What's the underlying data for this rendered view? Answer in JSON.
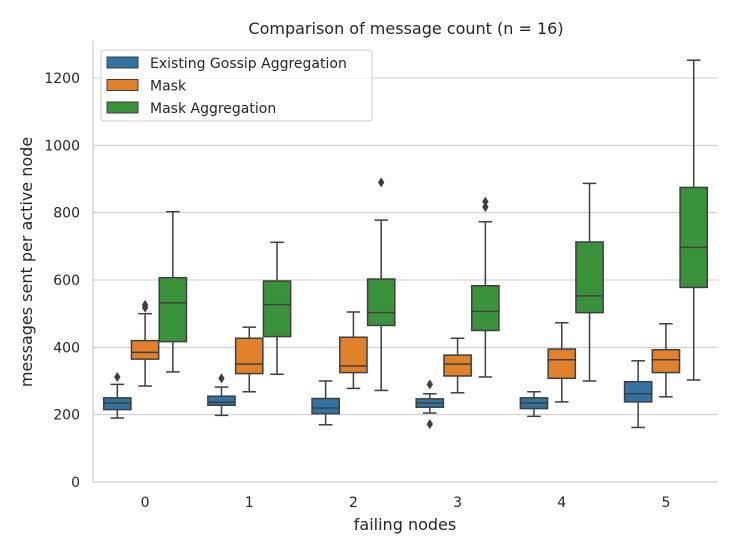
{
  "chart_data": {
    "type": "box",
    "title": "Comparison of message count (n = 16)",
    "xlabel": "failing nodes",
    "ylabel": "messages sent per active node",
    "categories": [
      "0",
      "1",
      "2",
      "3",
      "4",
      "5"
    ],
    "ylim": [
      0,
      1310
    ],
    "yticks": [
      0,
      200,
      400,
      600,
      800,
      1000,
      1200
    ],
    "grid": "horizontal",
    "legend_position": "top-left",
    "series": [
      {
        "name": "Existing Gossip Aggregation",
        "color": "#3274a1",
        "boxes": [
          {
            "whisker_low": 190,
            "q1": 215,
            "median": 235,
            "q3": 250,
            "whisker_high": 290,
            "outliers": [
              312
            ]
          },
          {
            "whisker_low": 198,
            "q1": 228,
            "median": 237,
            "q3": 255,
            "whisker_high": 282,
            "outliers": [
              308
            ]
          },
          {
            "whisker_low": 170,
            "q1": 203,
            "median": 220,
            "q3": 248,
            "whisker_high": 300,
            "outliers": []
          },
          {
            "whisker_low": 205,
            "q1": 222,
            "median": 235,
            "q3": 247,
            "whisker_high": 262,
            "outliers": [
              172,
              290
            ]
          },
          {
            "whisker_low": 195,
            "q1": 218,
            "median": 235,
            "q3": 250,
            "whisker_high": 268,
            "outliers": []
          },
          {
            "whisker_low": 162,
            "q1": 238,
            "median": 262,
            "q3": 298,
            "whisker_high": 360,
            "outliers": []
          }
        ]
      },
      {
        "name": "Mask",
        "color": "#e1812c",
        "boxes": [
          {
            "whisker_low": 285,
            "q1": 365,
            "median": 385,
            "q3": 420,
            "whisker_high": 500,
            "outliers": [
              518,
              526
            ]
          },
          {
            "whisker_low": 268,
            "q1": 322,
            "median": 350,
            "q3": 427,
            "whisker_high": 460,
            "outliers": []
          },
          {
            "whisker_low": 278,
            "q1": 325,
            "median": 345,
            "q3": 430,
            "whisker_high": 505,
            "outliers": []
          },
          {
            "whisker_low": 265,
            "q1": 315,
            "median": 350,
            "q3": 377,
            "whisker_high": 427,
            "outliers": []
          },
          {
            "whisker_low": 238,
            "q1": 308,
            "median": 363,
            "q3": 395,
            "whisker_high": 473,
            "outliers": []
          },
          {
            "whisker_low": 253,
            "q1": 325,
            "median": 363,
            "q3": 393,
            "whisker_high": 470,
            "outliers": []
          }
        ]
      },
      {
        "name": "Mask Aggregation",
        "color": "#3a923a",
        "boxes": [
          {
            "whisker_low": 327,
            "q1": 417,
            "median": 532,
            "q3": 607,
            "whisker_high": 803,
            "outliers": []
          },
          {
            "whisker_low": 320,
            "q1": 432,
            "median": 527,
            "q3": 597,
            "whisker_high": 712,
            "outliers": []
          },
          {
            "whisker_low": 272,
            "q1": 465,
            "median": 503,
            "q3": 603,
            "whisker_high": 778,
            "outliers": [
              890
            ]
          },
          {
            "whisker_low": 312,
            "q1": 450,
            "median": 507,
            "q3": 583,
            "whisker_high": 773,
            "outliers": [
              817,
              833
            ]
          },
          {
            "whisker_low": 300,
            "q1": 503,
            "median": 553,
            "q3": 713,
            "whisker_high": 887,
            "outliers": []
          },
          {
            "whisker_low": 303,
            "q1": 578,
            "median": 697,
            "q3": 875,
            "whisker_high": 1253,
            "outliers": []
          }
        ]
      }
    ]
  }
}
